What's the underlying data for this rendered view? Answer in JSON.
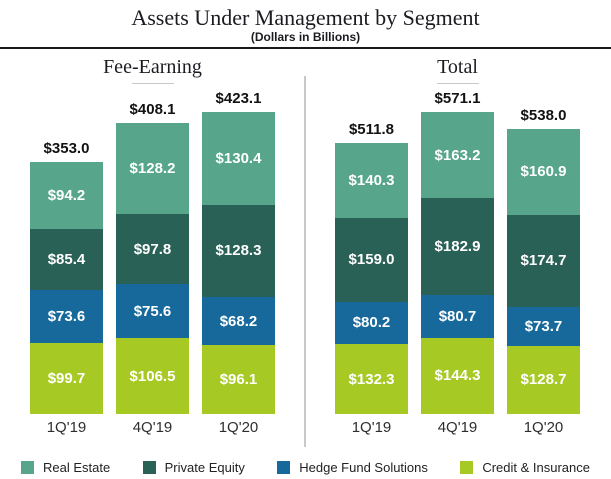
{
  "header": {
    "title": "Assets Under Management by Segment",
    "subtitle": "(Dollars in Billions)"
  },
  "chart_data": {
    "type": "bar",
    "variant": "stacked-grouped",
    "title": "Assets Under Management by Segment",
    "subtitle": "(Dollars in Billions)",
    "value_prefix": "$",
    "legend_position": "bottom",
    "segments_top_to_bottom": [
      {
        "name": "Real Estate",
        "color": "#57A68B"
      },
      {
        "name": "Private Equity",
        "color": "#2A6157"
      },
      {
        "name": "Hedge Fund Solutions",
        "color": "#17699C"
      },
      {
        "name": "Credit & Insurance",
        "color": "#A6CA23"
      }
    ],
    "groups": [
      {
        "title": "Fee-Earning",
        "categories": [
          "1Q'19",
          "4Q'19",
          "1Q'20"
        ],
        "totals": [
          353.0,
          408.1,
          423.1
        ],
        "series": [
          {
            "name": "Real Estate",
            "values": [
              94.2,
              128.2,
              130.4
            ]
          },
          {
            "name": "Private Equity",
            "values": [
              85.4,
              97.8,
              128.3
            ]
          },
          {
            "name": "Hedge Fund Solutions",
            "values": [
              73.6,
              75.6,
              68.2
            ]
          },
          {
            "name": "Credit & Insurance",
            "values": [
              99.7,
              106.5,
              96.1
            ]
          }
        ]
      },
      {
        "title": "Total",
        "categories": [
          "1Q'19",
          "4Q'19",
          "1Q'20"
        ],
        "totals": [
          511.8,
          571.1,
          538.0
        ],
        "series": [
          {
            "name": "Real Estate",
            "values": [
              140.3,
              163.2,
              160.9
            ]
          },
          {
            "name": "Private Equity",
            "values": [
              159.0,
              182.9,
              174.7
            ]
          },
          {
            "name": "Hedge Fund Solutions",
            "values": [
              80.2,
              80.7,
              73.7
            ]
          },
          {
            "name": "Credit & Insurance",
            "values": [
              132.3,
              144.3,
              128.7
            ]
          }
        ]
      }
    ]
  }
}
